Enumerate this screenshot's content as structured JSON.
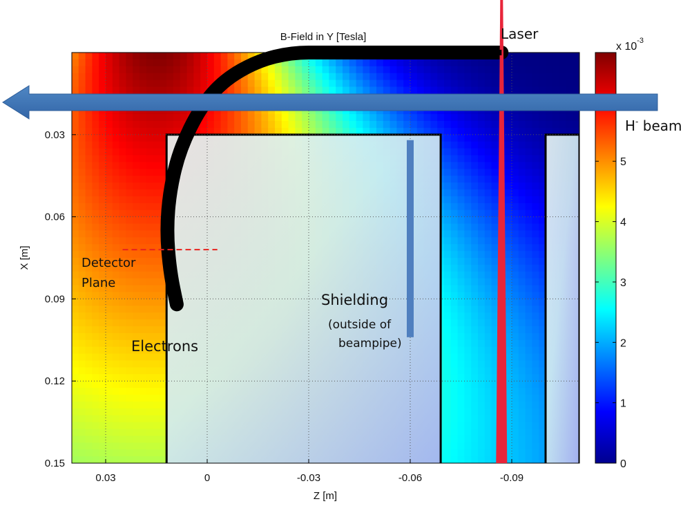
{
  "chart_data": {
    "type": "heatmap",
    "title": "B-Field in Y [Tesla]",
    "xlabel": "Z [m]",
    "ylabel": "X [m]",
    "xlim": [
      0.04,
      -0.11
    ],
    "ylim": [
      0.0,
      0.15
    ],
    "x_ticks": [
      0.03,
      0,
      -0.03,
      -0.06,
      -0.09
    ],
    "x_tick_labels": [
      "0.03",
      "0",
      "-0.03",
      "-0.06",
      "-0.09"
    ],
    "y_ticks": [
      0.03,
      0.06,
      0.09,
      0.12,
      0.15
    ],
    "y_tick_labels": [
      "0.03",
      "0.06",
      "0.09",
      "0.12",
      "0.15"
    ],
    "grid": true,
    "colorbar": {
      "range": [
        0,
        0.0068
      ],
      "ticks": [
        0,
        1,
        2,
        3,
        4,
        5
      ],
      "tick_labels": [
        "0",
        "1",
        "2",
        "3",
        "4",
        "5"
      ],
      "multiplier_base": "x 10",
      "multiplier_exp": "-3",
      "colormap": "jet"
    },
    "field_peak": {
      "z": 0.015,
      "x": 0.0,
      "value": 0.0068
    },
    "shielding_regions": [
      {
        "z_from": 0.012,
        "z_to": -0.069,
        "x_from": 0.03,
        "x_to": 0.15
      },
      {
        "z_from": -0.1,
        "z_to": -0.11,
        "x_from": 0.03,
        "x_to": 0.15
      }
    ],
    "laser": {
      "z": -0.087
    },
    "detector_plane": {
      "x": 0.072,
      "z_from": 0.025,
      "z_to": -0.003
    },
    "shielding_bar": {
      "z": -0.06,
      "x_from": 0.032,
      "x_to": 0.104
    },
    "electron_trajectory": [
      {
        "z": -0.087,
        "x": 0.0
      },
      {
        "z": -0.07,
        "x": 0.0
      },
      {
        "z": -0.05,
        "x": 0.0
      },
      {
        "z": -0.035,
        "x": 0.0
      },
      {
        "z": -0.025,
        "x": 0.0
      },
      {
        "z": -0.015,
        "x": 0.003
      },
      {
        "z": -0.005,
        "x": 0.01
      },
      {
        "z": 0.002,
        "x": 0.02
      },
      {
        "z": 0.008,
        "x": 0.035
      },
      {
        "z": 0.011,
        "x": 0.05
      },
      {
        "z": 0.012,
        "x": 0.065
      },
      {
        "z": 0.011,
        "x": 0.08
      },
      {
        "z": 0.009,
        "x": 0.092
      }
    ],
    "annotations": {
      "laser": "Laser",
      "beam_main": "H",
      "beam_sup": "-",
      "beam_rest": " beam",
      "detector_line1": "Detector",
      "detector_line2": "Plane",
      "electrons": "Electrons",
      "shielding_line1": "Shielding",
      "shielding_line2": "(outside of",
      "shielding_line3": "beampipe)"
    }
  }
}
